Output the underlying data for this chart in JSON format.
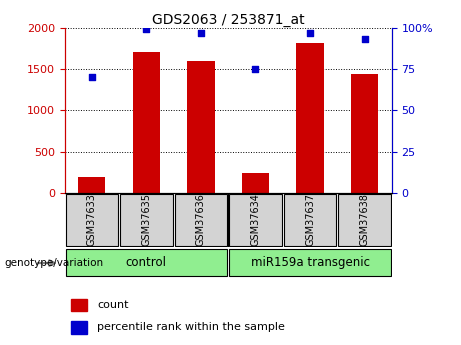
{
  "title": "GDS2063 / 253871_at",
  "samples": [
    "GSM37633",
    "GSM37635",
    "GSM37636",
    "GSM37634",
    "GSM37637",
    "GSM37638"
  ],
  "counts": [
    200,
    1700,
    1600,
    240,
    1820,
    1440
  ],
  "percentile_ranks": [
    70,
    99,
    97,
    75,
    97,
    93
  ],
  "group_labels": [
    "control",
    "miR159a transgenic"
  ],
  "group_ranges": [
    [
      0,
      3
    ],
    [
      3,
      6
    ]
  ],
  "group_color": "#90ee90",
  "sample_box_color": "#d3d3d3",
  "bar_color": "#cc0000",
  "dot_color": "#0000cc",
  "left_ylim": [
    0,
    2000
  ],
  "right_ylim": [
    0,
    100
  ],
  "left_yticks": [
    0,
    500,
    1000,
    1500,
    2000
  ],
  "right_yticks": [
    0,
    25,
    50,
    75,
    100
  ],
  "right_yticklabels": [
    "0",
    "25",
    "50",
    "75",
    "100%"
  ],
  "xlabel_area_label": "genotype/variation",
  "legend_count_label": "count",
  "legend_percentile_label": "percentile rank within the sample",
  "background_color": "#ffffff",
  "tick_label_color_left": "#cc0000",
  "tick_label_color_right": "#0000cc"
}
